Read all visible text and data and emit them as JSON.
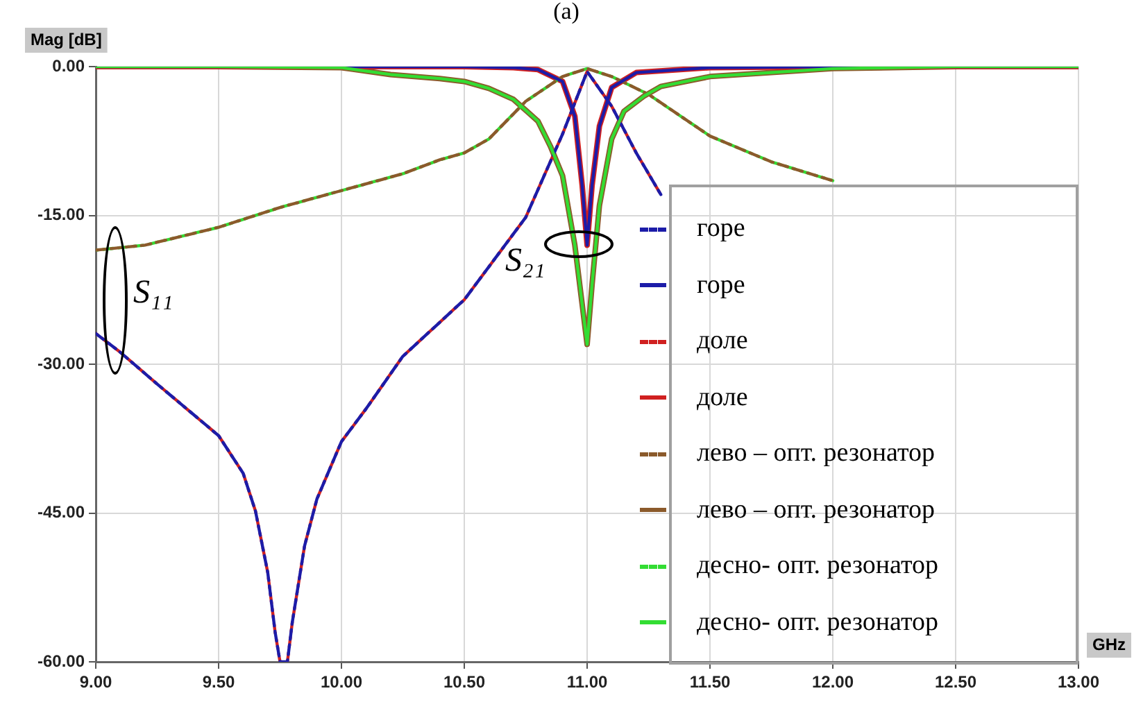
{
  "chart_data": {
    "type": "line",
    "title": "(a)",
    "xlabel": "GHz",
    "ylabel": "Mag [dB]",
    "xlim": [
      9,
      13
    ],
    "xticks": [
      {
        "value": 9,
        "label": "9.00"
      },
      {
        "value": 9.5,
        "label": "9.50"
      },
      {
        "value": 10,
        "label": "10.00"
      },
      {
        "value": 10.5,
        "label": "10.50"
      },
      {
        "value": 11,
        "label": "11.00"
      },
      {
        "value": 11.5,
        "label": "11.50"
      },
      {
        "value": 12,
        "label": "12.00"
      },
      {
        "value": 12.5,
        "label": "12.50"
      },
      {
        "value": 13,
        "label": "13.00"
      }
    ],
    "ylim": [
      -60,
      0
    ],
    "yticks": [
      {
        "value": -60,
        "label": "-60.00"
      },
      {
        "value": -45,
        "label": "-45.00"
      },
      {
        "value": -30,
        "label": "-30.00"
      },
      {
        "value": -15,
        "label": "-15.00"
      },
      {
        "value": 0,
        "label": "0.00"
      }
    ],
    "grid": true,
    "legend": "bottom right",
    "marker": "none",
    "annotations": [
      "S₁₁",
      "S₂₁"
    ],
    "series": [
      {
        "name": "горе",
        "color": "#1c1ca8",
        "line_style": "dashed",
        "x": [
          9,
          9.1,
          9.25,
          9.5,
          9.6,
          9.65,
          9.7,
          9.73,
          9.75,
          9.78,
          9.8,
          9.85,
          9.9,
          10,
          10.1,
          10.25,
          10.5,
          10.75,
          10.9,
          11,
          11.1,
          11.2,
          11.3
        ],
        "values": [
          -26.9,
          -28.8,
          -32,
          -37.2,
          -41,
          -44.8,
          -51,
          -57,
          -60,
          -60,
          -56,
          -48.3,
          -43.6,
          -37.8,
          -34.5,
          -29.2,
          -23.5,
          -15.2,
          -6.8,
          -0.5,
          -4,
          -8.7,
          -12.9
        ]
      },
      {
        "name": "горе",
        "color": "#1c1ca8",
        "line_style": "solid",
        "x": [
          9,
          10,
          10.5,
          10.7,
          10.8,
          10.9,
          10.95,
          10.98,
          11,
          11.02,
          11.05,
          11.1,
          11.2,
          11.5,
          12,
          13
        ],
        "values": [
          0,
          0,
          0,
          -0.1,
          -0.3,
          -1.5,
          -5,
          -12,
          -18,
          -12,
          -6,
          -2.1,
          -0.6,
          -0.1,
          0,
          0
        ]
      },
      {
        "name": "доле",
        "color": "#d02020",
        "line_style": "dashed",
        "x": [
          9,
          9.1,
          9.25,
          9.5,
          9.6,
          9.65,
          9.7,
          9.73,
          9.75,
          9.78,
          9.8,
          9.85,
          9.9,
          10,
          10.1,
          10.25,
          10.5,
          10.75,
          10.9,
          11,
          11.1,
          11.2,
          11.3
        ],
        "values": [
          -26.9,
          -28.8,
          -32,
          -37.2,
          -41,
          -44.8,
          -51,
          -57,
          -60,
          -60,
          -56,
          -48.3,
          -43.6,
          -37.8,
          -34.5,
          -29.2,
          -23.5,
          -15.2,
          -6.8,
          -0.5,
          -4,
          -8.7,
          -12.9
        ]
      },
      {
        "name": "доле",
        "color": "#d02020",
        "line_style": "solid",
        "x": [
          9,
          10,
          10.5,
          10.7,
          10.8,
          10.9,
          10.95,
          10.98,
          11,
          11.02,
          11.05,
          11.1,
          11.2,
          11.5,
          12,
          13
        ],
        "values": [
          0,
          0,
          0,
          -0.1,
          -0.3,
          -1.5,
          -5,
          -12,
          -18,
          -12,
          -6,
          -2.1,
          -0.6,
          -0.1,
          0,
          0
        ]
      },
      {
        "name": "лево – опт. резонатор",
        "color": "#8b5a2b",
        "line_style": "dashed",
        "x": [
          9,
          9.2,
          9.5,
          9.75,
          10,
          10.25,
          10.4,
          10.5,
          10.6,
          10.75,
          10.9,
          11,
          11.1,
          11.25,
          11.5,
          11.75,
          12
        ],
        "values": [
          -18.5,
          -18,
          -16.2,
          -14.2,
          -12.5,
          -10.8,
          -9.4,
          -8.7,
          -7.3,
          -3.5,
          -1,
          -0.2,
          -1,
          -2.8,
          -7,
          -9.6,
          -11.5
        ]
      },
      {
        "name": "лево – опт. резонатор",
        "color": "#8b5a2b",
        "line_style": "solid",
        "x": [
          9,
          9.5,
          10,
          10.2,
          10.4,
          10.5,
          10.6,
          10.7,
          10.8,
          10.85,
          10.9,
          10.95,
          10.98,
          11,
          11.02,
          11.05,
          11.1,
          11.15,
          11.23,
          11.3,
          11.5,
          12,
          12.5,
          13
        ],
        "values": [
          0,
          0,
          -0.1,
          -0.8,
          -1.2,
          -1.5,
          -2.2,
          -3.3,
          -5.5,
          -8,
          -11,
          -18,
          -24,
          -28,
          -22,
          -14,
          -7.3,
          -4.5,
          -3,
          -2,
          -1,
          -0.2,
          0,
          0
        ]
      },
      {
        "name": "десно- опт. резонатор",
        "color": "#33dd33",
        "line_style": "dashed",
        "x": [
          9,
          9.2,
          9.5,
          9.75,
          10,
          10.25,
          10.4,
          10.5,
          10.6,
          10.75,
          10.9,
          11,
          11.1,
          11.25,
          11.5,
          11.75,
          12
        ],
        "values": [
          -18.5,
          -18,
          -16.2,
          -14.2,
          -12.5,
          -10.8,
          -9.4,
          -8.7,
          -7.3,
          -3.5,
          -1,
          -0.2,
          -1,
          -2.8,
          -7,
          -9.6,
          -11.5
        ]
      },
      {
        "name": "десно- опт. резонатор",
        "color": "#33dd33",
        "line_style": "solid",
        "x": [
          9,
          9.5,
          10,
          10.2,
          10.4,
          10.5,
          10.6,
          10.7,
          10.8,
          10.85,
          10.9,
          10.95,
          10.98,
          11,
          11.02,
          11.05,
          11.1,
          11.15,
          11.23,
          11.3,
          11.5,
          12,
          12.5,
          13
        ],
        "values": [
          0,
          0,
          -0.1,
          -0.8,
          -1.2,
          -1.5,
          -2.2,
          -3.3,
          -5.5,
          -8,
          -11,
          -18,
          -24,
          -28,
          -22,
          -14,
          -7.3,
          -4.5,
          -3,
          -2,
          -1,
          -0.2,
          0,
          0
        ]
      }
    ]
  }
}
